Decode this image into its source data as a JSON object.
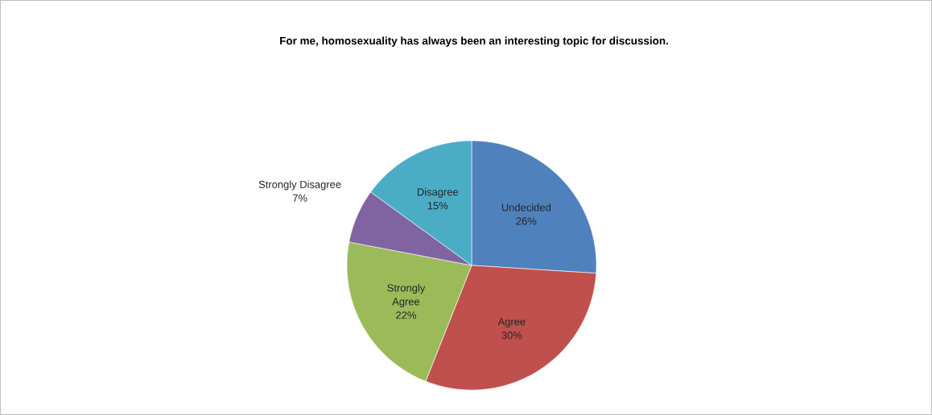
{
  "chart_data": {
    "type": "pie",
    "title": "For me, homosexuality has always been an interesting topic for discussion.",
    "categories": [
      "Undecided",
      "Agree",
      "Strongly Agree",
      "Strongly Disagree",
      "Disagree"
    ],
    "values": [
      26,
      30,
      22,
      7,
      15
    ],
    "value_labels": [
      "26%",
      "30%",
      "22%",
      "7%",
      "15%"
    ],
    "colors": [
      "#4f81bd",
      "#c0504d",
      "#9bbb59",
      "#8064a2",
      "#4bacc6"
    ],
    "legend": false
  }
}
